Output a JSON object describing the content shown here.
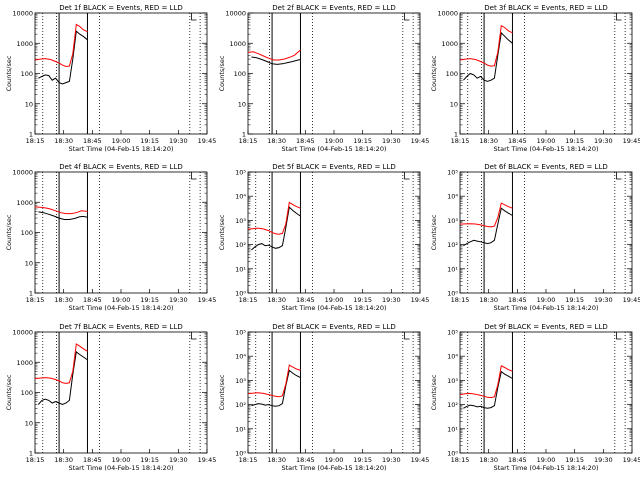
{
  "figure": {
    "rows": 3,
    "cols": 3
  },
  "common": {
    "xlabel": "Start Time (04-Feb-15 18:14:20)",
    "ylabel": "Counts/sec",
    "xtick_labels": [
      "18:15",
      "18:30",
      "18:45",
      "19:00",
      "19:15",
      "19:30",
      "19:45"
    ],
    "colors": {
      "events": "#000000",
      "lld": "#ff0000",
      "axes": "#000000"
    }
  },
  "chart_data": [
    {
      "type": "line",
      "panel": "det-1f",
      "title": "Det 1f BLACK = Events, RED = LLD",
      "xlabel": "Start Time (04-Feb-15 18:14:20)",
      "ylabel": "Counts/sec",
      "x_unit": "minutes after 18:15",
      "xlim": [
        0,
        100
      ],
      "yscale": "log",
      "ylim": [
        1,
        10000
      ],
      "ytick_labels": [
        "1",
        "10",
        "100",
        "1000",
        "10000"
      ],
      "vlines_dotted": [
        4.5,
        12.5,
        37.5,
        90,
        96
      ],
      "vlines_solid": [
        14,
        30.5
      ],
      "marker_x": 91,
      "series": [
        {
          "name": "Events",
          "color": "#000000",
          "start": 2,
          "x": [
            2,
            4,
            6,
            8,
            10,
            12,
            14,
            16,
            18,
            20,
            22,
            24,
            26,
            28,
            30.5
          ],
          "y": [
            70,
            80,
            90,
            85,
            60,
            70,
            50,
            45,
            50,
            55,
            300,
            2500,
            2000,
            1700,
            1300
          ]
        },
        {
          "name": "LLD",
          "color": "#ff0000",
          "start": 0,
          "x": [
            0,
            3,
            6,
            9,
            12,
            14,
            16,
            18,
            20,
            22,
            24,
            26,
            28,
            30.5
          ],
          "y": [
            280,
            300,
            310,
            290,
            250,
            220,
            190,
            170,
            175,
            450,
            4200,
            3600,
            2800,
            2400
          ]
        }
      ]
    },
    {
      "type": "line",
      "panel": "det-2f",
      "title": "Det 2f BLACK = Events, RED = LLD",
      "xlabel": "Start Time (04-Feb-15 18:14:20)",
      "ylabel": "Counts/sec",
      "x_unit": "minutes after 18:15",
      "xlim": [
        0,
        100
      ],
      "yscale": "log",
      "ylim": [
        1,
        10000
      ],
      "ytick_labels": [
        "1",
        "10",
        "100",
        "1000",
        "10000"
      ],
      "vlines_dotted": [
        12.5,
        37.5,
        90,
        96
      ],
      "vlines_solid": [
        14,
        30.5
      ],
      "marker_x": 91,
      "series": [
        {
          "name": "Events",
          "color": "#000000",
          "start": 2,
          "x": [
            2,
            5,
            8,
            11,
            14,
            17,
            20,
            23,
            26,
            28,
            30.5
          ],
          "y": [
            350,
            330,
            290,
            250,
            210,
            200,
            210,
            230,
            250,
            270,
            290
          ]
        },
        {
          "name": "LLD",
          "color": "#ff0000",
          "start": 0,
          "x": [
            0,
            3,
            6,
            9,
            12,
            15,
            18,
            21,
            24,
            27,
            30.5
          ],
          "y": [
            500,
            520,
            450,
            380,
            320,
            280,
            280,
            300,
            340,
            400,
            600
          ]
        }
      ]
    },
    {
      "type": "line",
      "panel": "det-3f",
      "title": "Det 3f BLACK = Events, RED = LLD",
      "xlabel": "Start Time (04-Feb-15 18:14:20)",
      "ylabel": "Counts/sec",
      "x_unit": "minutes after 18:15",
      "xlim": [
        0,
        100
      ],
      "yscale": "log",
      "ylim": [
        1,
        10000
      ],
      "ytick_labels": [
        "1",
        "10",
        "100",
        "1000",
        "10000"
      ],
      "vlines_dotted": [
        4.5,
        12.5,
        37.5,
        90,
        96
      ],
      "vlines_solid": [
        14,
        30.5
      ],
      "marker_x": 91,
      "series": [
        {
          "name": "Events",
          "color": "#000000",
          "start": 2,
          "x": [
            2,
            4,
            6,
            8,
            10,
            12,
            14,
            16,
            18,
            20,
            22,
            24,
            26,
            28,
            30.5
          ],
          "y": [
            60,
            80,
            100,
            90,
            70,
            80,
            60,
            55,
            60,
            70,
            400,
            2200,
            1700,
            1300,
            1000
          ]
        },
        {
          "name": "LLD",
          "color": "#ff0000",
          "start": 0,
          "x": [
            0,
            3,
            6,
            9,
            12,
            14,
            16,
            18,
            20,
            22,
            24,
            26,
            28,
            30.5
          ],
          "y": [
            280,
            300,
            310,
            290,
            250,
            220,
            190,
            175,
            180,
            500,
            3800,
            3300,
            2600,
            2200
          ]
        }
      ]
    },
    {
      "type": "line",
      "panel": "det-4f",
      "title": "Det 4f BLACK = Events, RED = LLD",
      "xlabel": "Start Time (04-Feb-15 18:14:20)",
      "ylabel": "Counts/sec",
      "x_unit": "minutes after 18:15",
      "xlim": [
        0,
        100
      ],
      "yscale": "log",
      "ylim": [
        1,
        10000
      ],
      "ytick_labels": [
        "1",
        "10",
        "100",
        "1000",
        "10000"
      ],
      "vlines_dotted": [
        4.5,
        12.5,
        37.5,
        90,
        96
      ],
      "vlines_solid": [
        14,
        30.5
      ],
      "marker_x": 91,
      "series": [
        {
          "name": "Events",
          "color": "#000000",
          "start": 2,
          "x": [
            2,
            5,
            8,
            11,
            14,
            17,
            20,
            23,
            26,
            28,
            30.5
          ],
          "y": [
            480,
            450,
            400,
            350,
            300,
            270,
            270,
            290,
            330,
            340,
            320
          ]
        },
        {
          "name": "LLD",
          "color": "#ff0000",
          "start": 0,
          "x": [
            0,
            3,
            6,
            9,
            12,
            15,
            18,
            21,
            24,
            27,
            30.5
          ],
          "y": [
            700,
            680,
            650,
            600,
            520,
            450,
            420,
            420,
            450,
            520,
            500
          ]
        }
      ]
    },
    {
      "type": "line",
      "panel": "det-5f",
      "title": "Det 5f BLACK = Events, RED = LLD",
      "xlabel": "Start Time (04-Feb-15 18:14:20)",
      "ylabel": "Counts/sec",
      "x_unit": "minutes after 18:15",
      "xlim": [
        0,
        100
      ],
      "yscale": "log",
      "ylim": [
        1,
        100000
      ],
      "ytick_labels": [
        "10⁰",
        "10¹",
        "10²",
        "10³",
        "10⁴",
        "10⁵"
      ],
      "vlines_dotted": [
        4.5,
        12.5,
        37.5,
        90,
        96
      ],
      "vlines_solid": [
        14,
        30.5
      ],
      "marker_x": 91,
      "series": [
        {
          "name": "Events",
          "color": "#000000",
          "start": 2,
          "x": [
            2,
            4,
            6,
            8,
            10,
            12,
            14,
            16,
            18,
            20,
            22,
            24,
            26,
            28,
            30.5
          ],
          "y": [
            60,
            80,
            100,
            110,
            90,
            95,
            80,
            70,
            75,
            90,
            500,
            3500,
            2600,
            2000,
            1500
          ]
        },
        {
          "name": "LLD",
          "color": "#ff0000",
          "start": 0,
          "x": [
            0,
            3,
            6,
            9,
            12,
            14,
            16,
            18,
            20,
            22,
            24,
            26,
            28,
            30.5
          ],
          "y": [
            430,
            460,
            480,
            440,
            380,
            320,
            280,
            270,
            290,
            700,
            5500,
            4500,
            3800,
            3200
          ]
        }
      ]
    },
    {
      "type": "line",
      "panel": "det-6f",
      "title": "Det 6f BLACK = Events, RED = LLD",
      "xlabel": "Start Time (04-Feb-15 18:14:20)",
      "ylabel": "Counts/sec",
      "x_unit": "minutes after 18:15",
      "xlim": [
        0,
        100
      ],
      "yscale": "log",
      "ylim": [
        1,
        100000
      ],
      "ytick_labels": [
        "10⁰",
        "10¹",
        "10²",
        "10³",
        "10⁴",
        "10⁵"
      ],
      "vlines_dotted": [
        4.5,
        12.5,
        37.5,
        90,
        96
      ],
      "vlines_solid": [
        14,
        30.5
      ],
      "marker_x": 91,
      "series": [
        {
          "name": "Events",
          "color": "#000000",
          "start": 2,
          "x": [
            2,
            4,
            6,
            8,
            10,
            12,
            14,
            16,
            18,
            20,
            22,
            24,
            26,
            28,
            30.5
          ],
          "y": [
            90,
            110,
            130,
            150,
            140,
            130,
            120,
            110,
            120,
            150,
            700,
            3200,
            2500,
            2000,
            1600
          ]
        },
        {
          "name": "LLD",
          "color": "#ff0000",
          "start": 0,
          "x": [
            0,
            3,
            6,
            9,
            12,
            14,
            16,
            18,
            20,
            22,
            24,
            26,
            28,
            30.5
          ],
          "y": [
            700,
            720,
            730,
            710,
            650,
            600,
            560,
            540,
            580,
            1300,
            5200,
            4400,
            3700,
            3200
          ]
        }
      ]
    },
    {
      "type": "line",
      "panel": "det-7f",
      "title": "Det 7f BLACK = Events, RED = LLD",
      "xlabel": "Start Time (04-Feb-15 18:14:20)",
      "ylabel": "Counts/sec",
      "x_unit": "minutes after 18:15",
      "xlim": [
        0,
        100
      ],
      "yscale": "log",
      "ylim": [
        1,
        10000
      ],
      "ytick_labels": [
        "1",
        "10",
        "100",
        "1000",
        "10000"
      ],
      "vlines_dotted": [
        4.5,
        12.5,
        37.5,
        90,
        96
      ],
      "vlines_solid": [
        14,
        30.5
      ],
      "marker_x": 91,
      "series": [
        {
          "name": "Events",
          "color": "#000000",
          "start": 2,
          "x": [
            2,
            4,
            6,
            8,
            10,
            12,
            14,
            16,
            18,
            20,
            22,
            24,
            26,
            28,
            30.5
          ],
          "y": [
            40,
            55,
            60,
            55,
            45,
            50,
            45,
            40,
            45,
            55,
            400,
            2200,
            1800,
            1500,
            1200
          ]
        },
        {
          "name": "LLD",
          "color": "#ff0000",
          "start": 0,
          "x": [
            0,
            3,
            6,
            9,
            12,
            14,
            16,
            18,
            20,
            22,
            24,
            26,
            28,
            30.5
          ],
          "y": [
            290,
            300,
            310,
            300,
            270,
            240,
            210,
            200,
            210,
            500,
            4000,
            3400,
            2800,
            2300
          ]
        }
      ]
    },
    {
      "type": "line",
      "panel": "det-8f",
      "title": "Det 8f BLACK = Events, RED = LLD",
      "xlabel": "Start Time (04-Feb-15 18:14:20)",
      "ylabel": "Counts/sec",
      "x_unit": "minutes after 18:15",
      "xlim": [
        0,
        100
      ],
      "yscale": "log",
      "ylim": [
        1,
        100000
      ],
      "ytick_labels": [
        "10⁰",
        "10¹",
        "10²",
        "10³",
        "10⁴",
        "10⁵"
      ],
      "vlines_dotted": [
        4.5,
        12.5,
        37.5,
        90,
        96
      ],
      "vlines_solid": [
        14,
        30.5
      ],
      "marker_x": 91,
      "series": [
        {
          "name": "Events",
          "color": "#000000",
          "start": 2,
          "x": [
            2,
            4,
            6,
            8,
            10,
            12,
            14,
            16,
            18,
            20,
            22,
            24,
            26,
            28,
            30.5
          ],
          "y": [
            90,
            100,
            110,
            105,
            95,
            100,
            90,
            85,
            90,
            110,
            600,
            2600,
            2000,
            1600,
            1300
          ]
        },
        {
          "name": "LLD",
          "color": "#ff0000",
          "start": 0,
          "x": [
            0,
            3,
            6,
            9,
            12,
            14,
            16,
            18,
            20,
            22,
            24,
            26,
            28,
            30.5
          ],
          "y": [
            280,
            300,
            310,
            290,
            260,
            240,
            220,
            210,
            230,
            700,
            4300,
            3600,
            3000,
            2600
          ]
        }
      ]
    },
    {
      "type": "line",
      "panel": "det-9f",
      "title": "Det 9f BLACK = Events, RED = LLD",
      "xlabel": "Start Time (04-Feb-15 18:14:20)",
      "ylabel": "Counts/sec",
      "x_unit": "minutes after 18:15",
      "xlim": [
        0,
        100
      ],
      "yscale": "log",
      "ylim": [
        1,
        100000
      ],
      "ytick_labels": [
        "10⁰",
        "10¹",
        "10²",
        "10³",
        "10⁴",
        "10⁵"
      ],
      "vlines_dotted": [
        4.5,
        12.5,
        37.5,
        90,
        96
      ],
      "vlines_solid": [
        14,
        30.5
      ],
      "marker_x": 91,
      "series": [
        {
          "name": "Events",
          "color": "#000000",
          "start": 2,
          "x": [
            2,
            4,
            6,
            8,
            10,
            12,
            14,
            16,
            18,
            20,
            22,
            24,
            26,
            28,
            30.5
          ],
          "y": [
            70,
            85,
            95,
            90,
            80,
            85,
            75,
            70,
            75,
            90,
            500,
            2300,
            1800,
            1500,
            1200
          ]
        },
        {
          "name": "LLD",
          "color": "#ff0000",
          "start": 0,
          "x": [
            0,
            3,
            6,
            9,
            12,
            14,
            16,
            18,
            20,
            22,
            24,
            26,
            28,
            30.5
          ],
          "y": [
            260,
            280,
            290,
            270,
            240,
            220,
            200,
            195,
            210,
            650,
            4000,
            3400,
            2800,
            2400
          ]
        }
      ]
    }
  ]
}
